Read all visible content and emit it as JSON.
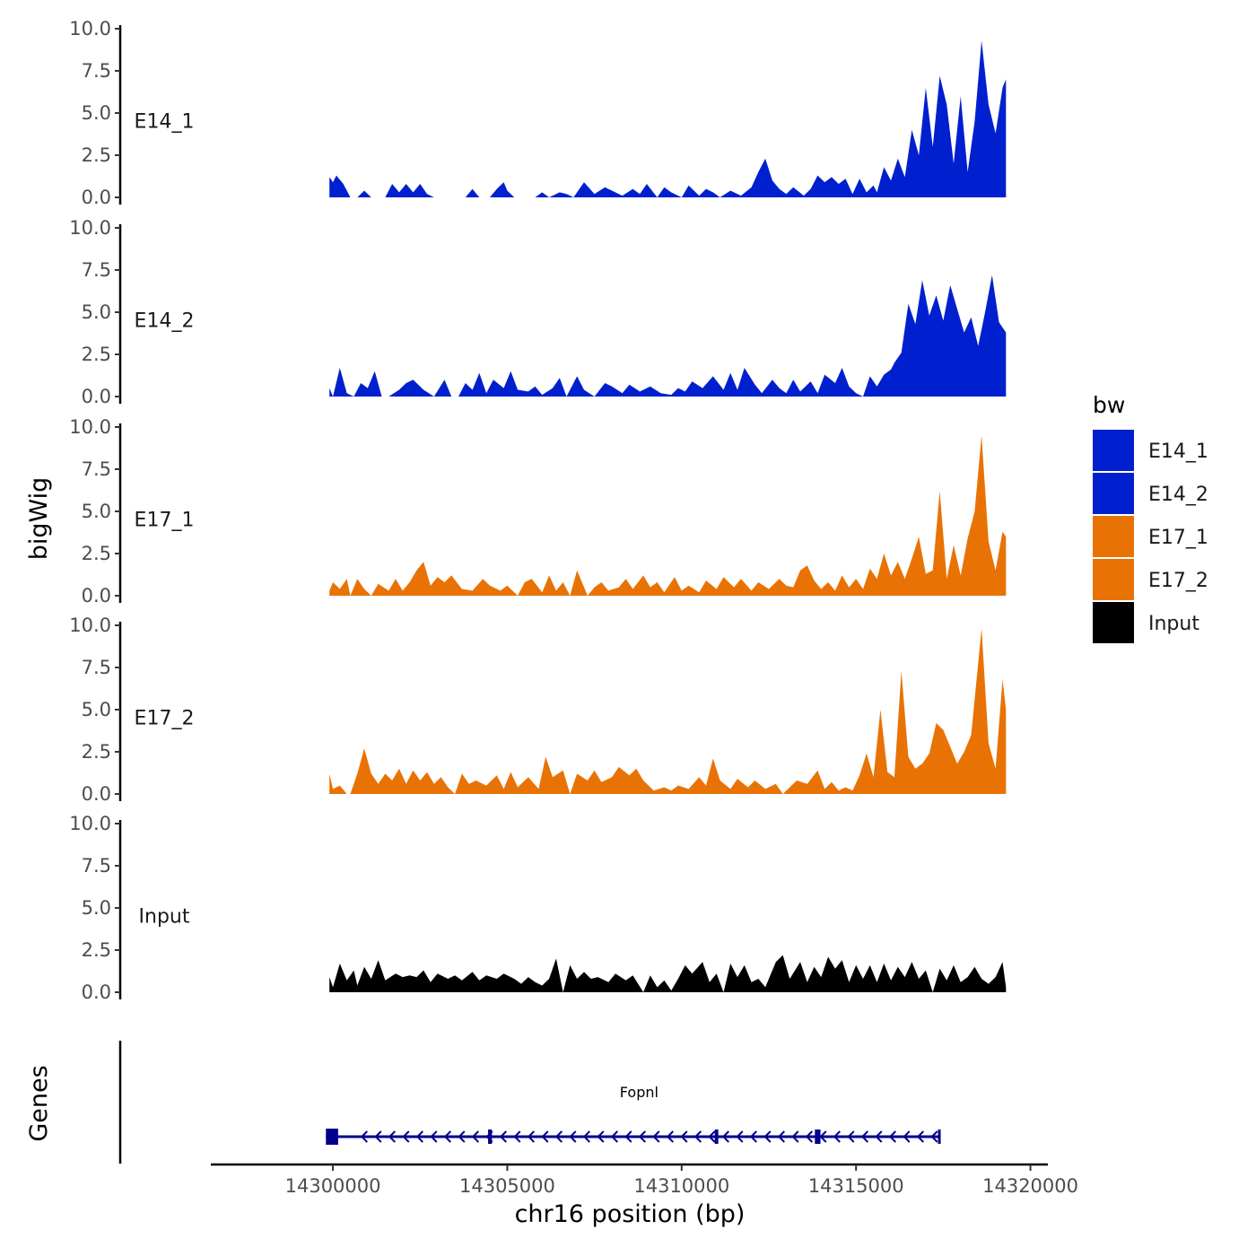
{
  "chart_data": {
    "type": "area",
    "ylabel": "bigWig",
    "genes_label": "Genes",
    "xlabel": "chr16 position (bp)",
    "xlim": [
      14296500,
      14320500
    ],
    "x_ticks": [
      14300000,
      14305000,
      14310000,
      14315000,
      14320000
    ],
    "x_tick_labels": [
      "14300000",
      "14305000",
      "14310000",
      "14315000",
      "14320000"
    ],
    "ylim": [
      0,
      10
    ],
    "y_ticks": [
      0,
      2.5,
      5,
      7.5,
      10
    ],
    "y_tick_labels": [
      "0.0",
      "2.5",
      "5.0",
      "7.5",
      "10.0"
    ],
    "legend": {
      "title": "bw",
      "position": "right",
      "entries": [
        {
          "label": "E14_1",
          "color": "#0020CF"
        },
        {
          "label": "E14_2",
          "color": "#0020CF"
        },
        {
          "label": "E17_1",
          "color": "#E87304"
        },
        {
          "label": "E17_2",
          "color": "#E87304"
        },
        {
          "label": "Input",
          "color": "#000000"
        }
      ]
    },
    "series": [
      {
        "name": "E14_1",
        "color": "#0020CF",
        "x": [
          14299900,
          14300000,
          14300100,
          14300300,
          14300500,
          14300700,
          14300900,
          14301100,
          14301200,
          14301500,
          14301700,
          14301900,
          14302100,
          14302300,
          14302500,
          14302700,
          14302900,
          14303200,
          14303800,
          14304000,
          14304200,
          14304500,
          14304700,
          14304900,
          14305000,
          14305200,
          14305500,
          14305800,
          14306000,
          14306200,
          14306500,
          14306700,
          14306900,
          14307200,
          14307500,
          14307800,
          14308000,
          14308300,
          14308600,
          14308800,
          14309000,
          14309300,
          14309500,
          14309700,
          14310000,
          14310200,
          14310500,
          14310700,
          14310900,
          14311100,
          14311400,
          14311700,
          14312000,
          14312200,
          14312400,
          14312600,
          14312800,
          14313000,
          14313200,
          14313500,
          14313700,
          14313900,
          14314100,
          14314300,
          14314500,
          14314700,
          14314900,
          14315100,
          14315300,
          14315500,
          14315600,
          14315800,
          14316000,
          14316200,
          14316400,
          14316600,
          14316800,
          14317000,
          14317200,
          14317400,
          14317600,
          14317800,
          14318000,
          14318200,
          14318400,
          14318600,
          14318800,
          14319000,
          14319200,
          14319300
        ],
        "y": [
          1.2,
          0.9,
          1.3,
          0.8,
          0.0,
          0.0,
          0.4,
          0.0,
          0.0,
          0.0,
          0.8,
          0.3,
          0.8,
          0.3,
          0.8,
          0.2,
          0.0,
          0.0,
          0.0,
          0.5,
          0.0,
          0.0,
          0.5,
          0.9,
          0.4,
          0.0,
          0.0,
          0.0,
          0.3,
          0.0,
          0.3,
          0.2,
          0.0,
          0.9,
          0.2,
          0.6,
          0.4,
          0.1,
          0.5,
          0.2,
          0.8,
          0.0,
          0.6,
          0.3,
          0.0,
          0.7,
          0.1,
          0.5,
          0.3,
          0.0,
          0.4,
          0.1,
          0.6,
          1.5,
          2.3,
          1.0,
          0.5,
          0.2,
          0.6,
          0.1,
          0.5,
          1.3,
          0.9,
          1.2,
          0.8,
          1.1,
          0.2,
          1.1,
          0.3,
          0.7,
          0.3,
          1.8,
          1.0,
          2.3,
          1.2,
          4.0,
          2.5,
          6.5,
          3.0,
          7.2,
          5.5,
          2.0,
          6.0,
          1.5,
          4.5,
          9.3,
          5.5,
          3.8,
          6.5,
          7.0
        ]
      },
      {
        "name": "E14_2",
        "color": "#0020CF",
        "x": [
          14299900,
          14300000,
          14300200,
          14300400,
          14300600,
          14300800,
          14301000,
          14301200,
          14301400,
          14301600,
          14301900,
          14302100,
          14302300,
          14302600,
          14302900,
          14303200,
          14303400,
          14303600,
          14303800,
          14304000,
          14304200,
          14304400,
          14304600,
          14304900,
          14305100,
          14305300,
          14305600,
          14305800,
          14306000,
          14306300,
          14306500,
          14306700,
          14307000,
          14307200,
          14307500,
          14307800,
          14308000,
          14308300,
          14308500,
          14308800,
          14309100,
          14309400,
          14309700,
          14309900,
          14310100,
          14310300,
          14310600,
          14310900,
          14311200,
          14311400,
          14311600,
          14311800,
          14312100,
          14312300,
          14312600,
          14312800,
          14313000,
          14313200,
          14313400,
          14313700,
          14313900,
          14314100,
          14314400,
          14314600,
          14314800,
          14315000,
          14315200,
          14315400,
          14315600,
          14315800,
          14316000,
          14316100,
          14316300,
          14316500,
          14316700,
          14316900,
          14317100,
          14317300,
          14317500,
          14317700,
          14317900,
          14318100,
          14318300,
          14318500,
          14318700,
          14318900,
          14319100,
          14319300
        ],
        "y": [
          0.5,
          0.0,
          1.7,
          0.2,
          0.0,
          0.8,
          0.5,
          1.5,
          0.0,
          0.0,
          0.4,
          0.8,
          1.0,
          0.4,
          0.0,
          1.0,
          0.0,
          0.0,
          0.8,
          0.4,
          1.4,
          0.2,
          1.0,
          0.5,
          1.5,
          0.4,
          0.3,
          0.6,
          0.1,
          0.5,
          1.1,
          0.0,
          1.2,
          0.4,
          0.0,
          0.8,
          0.6,
          0.2,
          0.7,
          0.3,
          0.6,
          0.2,
          0.1,
          0.5,
          0.3,
          0.9,
          0.5,
          1.2,
          0.4,
          1.4,
          0.4,
          1.7,
          0.7,
          0.2,
          1.0,
          0.5,
          0.2,
          1.0,
          0.3,
          0.9,
          0.2,
          1.3,
          0.8,
          1.7,
          0.6,
          0.2,
          0.0,
          1.2,
          0.6,
          1.3,
          1.6,
          2.0,
          2.6,
          5.5,
          4.3,
          6.9,
          4.8,
          6.0,
          4.5,
          6.6,
          5.2,
          3.8,
          4.7,
          3.0,
          5.0,
          7.2,
          4.4,
          3.8
        ]
      },
      {
        "name": "E17_1",
        "color": "#E87304",
        "x": [
          14299900,
          14300000,
          14300200,
          14300400,
          14300500,
          14300700,
          14300900,
          14301100,
          14301300,
          14301600,
          14301800,
          14302000,
          14302200,
          14302400,
          14302600,
          14302800,
          14303000,
          14303200,
          14303400,
          14303700,
          14304000,
          14304300,
          14304500,
          14304800,
          14305000,
          14305300,
          14305500,
          14305700,
          14306000,
          14306200,
          14306400,
          14306600,
          14306800,
          14307000,
          14307300,
          14307500,
          14307700,
          14307900,
          14308200,
          14308400,
          14308600,
          14308900,
          14309100,
          14309300,
          14309500,
          14309800,
          14310000,
          14310200,
          14310500,
          14310700,
          14311000,
          14311200,
          14311500,
          14311700,
          14312000,
          14312200,
          14312500,
          14312800,
          14313000,
          14313200,
          14313400,
          14313600,
          14313800,
          14314000,
          14314200,
          14314400,
          14314600,
          14314800,
          14315000,
          14315200,
          14315400,
          14315600,
          14315800,
          14316000,
          14316200,
          14316400,
          14316600,
          14316800,
          14317000,
          14317200,
          14317400,
          14317600,
          14317800,
          14318000,
          14318200,
          14318400,
          14318600,
          14318800,
          14319000,
          14319200,
          14319300
        ],
        "y": [
          0.3,
          0.8,
          0.4,
          1.0,
          0.0,
          1.0,
          0.4,
          0.0,
          0.7,
          0.3,
          1.0,
          0.3,
          0.8,
          1.5,
          2.0,
          0.6,
          1.1,
          0.8,
          1.2,
          0.4,
          0.3,
          1.0,
          0.6,
          0.3,
          0.6,
          0.0,
          0.8,
          1.0,
          0.2,
          1.2,
          0.3,
          0.8,
          0.0,
          1.5,
          0.0,
          0.5,
          0.8,
          0.3,
          0.5,
          1.0,
          0.4,
          1.2,
          0.5,
          0.8,
          0.2,
          1.1,
          0.3,
          0.6,
          0.2,
          0.9,
          0.4,
          1.1,
          0.5,
          1.0,
          0.3,
          0.8,
          0.4,
          1.0,
          0.6,
          0.5,
          1.5,
          1.8,
          0.9,
          0.4,
          0.8,
          0.3,
          1.2,
          0.5,
          1.0,
          0.4,
          1.6,
          1.0,
          2.5,
          1.2,
          2.0,
          1.0,
          2.2,
          3.5,
          1.3,
          1.5,
          6.2,
          1.0,
          3.0,
          1.2,
          3.4,
          5.0,
          9.5,
          3.2,
          1.5,
          3.8,
          3.5
        ]
      },
      {
        "name": "E17_2",
        "color": "#E87304",
        "x": [
          14299900,
          14300000,
          14300200,
          14300400,
          14300500,
          14300700,
          14300900,
          14301100,
          14301300,
          14301500,
          14301700,
          14301900,
          14302100,
          14302300,
          14302500,
          14302700,
          14302900,
          14303100,
          14303300,
          14303500,
          14303700,
          14303900,
          14304100,
          14304400,
          14304700,
          14304900,
          14305100,
          14305300,
          14305600,
          14305900,
          14306100,
          14306300,
          14306600,
          14306800,
          14307000,
          14307300,
          14307500,
          14307700,
          14308000,
          14308200,
          14308500,
          14308700,
          14308900,
          14309200,
          14309500,
          14309700,
          14309900,
          14310200,
          14310500,
          14310700,
          14310900,
          14311100,
          14311400,
          14311600,
          14311900,
          14312100,
          14312400,
          14312700,
          14312900,
          14313100,
          14313300,
          14313600,
          14313900,
          14314100,
          14314300,
          14314500,
          14314700,
          14314900,
          14315100,
          14315300,
          14315500,
          14315700,
          14315900,
          14316100,
          14316300,
          14316500,
          14316700,
          14316900,
          14317100,
          14317300,
          14317500,
          14317700,
          14317900,
          14318100,
          14318300,
          14318600,
          14318800,
          14319000,
          14319200,
          14319300
        ],
        "y": [
          1.2,
          0.3,
          0.5,
          0.0,
          0.0,
          1.2,
          2.7,
          1.2,
          0.6,
          1.2,
          0.8,
          1.5,
          0.6,
          1.4,
          0.8,
          1.3,
          0.6,
          1.0,
          0.4,
          0.0,
          1.2,
          0.6,
          0.8,
          0.5,
          1.1,
          0.3,
          1.3,
          0.4,
          1.0,
          0.3,
          2.2,
          1.0,
          1.4,
          0.0,
          1.2,
          0.8,
          1.4,
          0.7,
          1.0,
          1.6,
          1.1,
          1.5,
          0.8,
          0.2,
          0.4,
          0.2,
          0.5,
          0.3,
          1.0,
          0.5,
          2.1,
          0.8,
          0.3,
          0.9,
          0.4,
          0.8,
          0.3,
          0.6,
          0.0,
          0.4,
          0.8,
          0.6,
          1.4,
          0.3,
          0.7,
          0.2,
          0.4,
          0.2,
          1.1,
          2.4,
          1.0,
          5.0,
          1.3,
          1.0,
          7.3,
          2.2,
          1.5,
          1.8,
          2.4,
          4.2,
          3.8,
          2.8,
          1.8,
          2.5,
          3.5,
          9.8,
          3.0,
          1.5,
          6.8,
          5.0
        ]
      },
      {
        "name": "Input",
        "color": "#000000",
        "x": [
          14299900,
          14300000,
          14300200,
          14300400,
          14300600,
          14300700,
          14300900,
          14301100,
          14301300,
          14301500,
          14301800,
          14302000,
          14302200,
          14302400,
          14302600,
          14302800,
          14303000,
          14303300,
          14303500,
          14303700,
          14304000,
          14304200,
          14304400,
          14304700,
          14304900,
          14305200,
          14305400,
          14305600,
          14305800,
          14306000,
          14306200,
          14306400,
          14306600,
          14306800,
          14307000,
          14307200,
          14307400,
          14307600,
          14307900,
          14308100,
          14308400,
          14308600,
          14308900,
          14309100,
          14309300,
          14309500,
          14309700,
          14309900,
          14310100,
          14310300,
          14310600,
          14310800,
          14311000,
          14311200,
          14311400,
          14311600,
          14311800,
          14312000,
          14312200,
          14312400,
          14312700,
          14312900,
          14313100,
          14313400,
          14313600,
          14313800,
          14314000,
          14314200,
          14314400,
          14314600,
          14314800,
          14315000,
          14315200,
          14315400,
          14315600,
          14315800,
          14316000,
          14316200,
          14316400,
          14316600,
          14316800,
          14317000,
          14317200,
          14317400,
          14317600,
          14317800,
          14318000,
          14318200,
          14318400,
          14318600,
          14318800,
          14319000,
          14319200,
          14319300
        ],
        "y": [
          0.9,
          0.3,
          1.7,
          0.7,
          1.3,
          0.4,
          1.5,
          0.8,
          1.9,
          0.7,
          1.1,
          0.9,
          1.0,
          0.9,
          1.3,
          0.6,
          1.1,
          0.8,
          1.0,
          0.7,
          1.2,
          0.7,
          1.0,
          0.8,
          1.1,
          0.8,
          0.5,
          0.9,
          0.6,
          0.4,
          0.8,
          2.0,
          0.0,
          1.6,
          0.8,
          1.2,
          0.8,
          0.9,
          0.6,
          1.1,
          0.7,
          1.0,
          0.0,
          1.0,
          0.3,
          0.7,
          0.1,
          0.8,
          1.6,
          1.1,
          1.8,
          0.6,
          1.1,
          0.0,
          1.7,
          0.9,
          1.6,
          0.6,
          0.8,
          0.3,
          1.8,
          2.2,
          0.8,
          1.8,
          0.6,
          1.5,
          0.9,
          2.1,
          1.4,
          1.9,
          0.6,
          1.6,
          0.8,
          1.6,
          0.6,
          1.7,
          0.7,
          1.5,
          0.9,
          1.8,
          0.8,
          1.3,
          0.0,
          1.4,
          0.7,
          1.6,
          0.6,
          0.9,
          1.5,
          0.8,
          0.5,
          0.9,
          1.8,
          0.3
        ]
      }
    ],
    "gene_track": {
      "gene": "Fopnl",
      "color": "#00008B",
      "strand": "-",
      "start": 14299800,
      "end": 14317400,
      "exons": [
        [
          14299800,
          14300150
        ],
        [
          14304450,
          14304560
        ],
        [
          14310950,
          14311050
        ],
        [
          14313820,
          14313980
        ],
        [
          14317350,
          14317420
        ]
      ]
    }
  }
}
